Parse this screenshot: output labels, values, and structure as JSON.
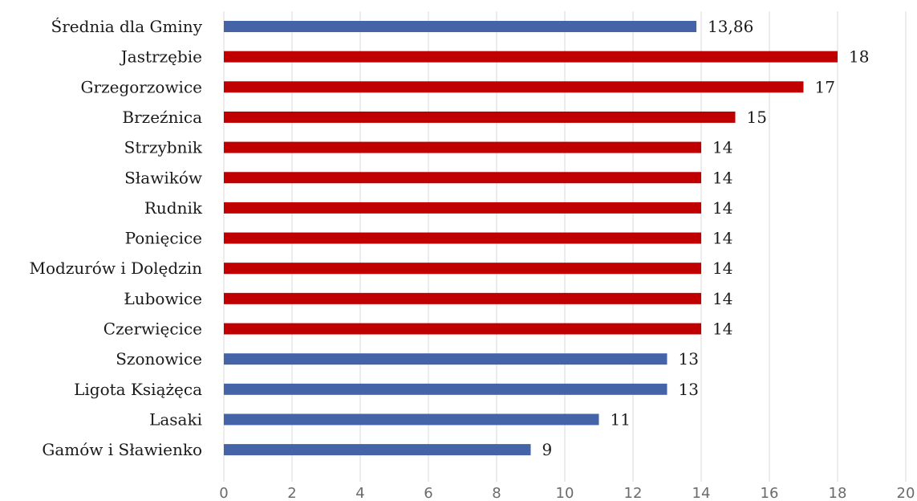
{
  "chart_data": {
    "type": "bar",
    "orientation": "horizontal",
    "title": "",
    "xlabel": "",
    "ylabel": "",
    "xlim": [
      0,
      20
    ],
    "x_ticks": [
      0,
      2,
      4,
      6,
      8,
      10,
      12,
      14,
      16,
      18,
      20
    ],
    "grid": "vertical",
    "legend": "none",
    "colors": {
      "blue": "#4564a8",
      "red": "#c00000"
    },
    "bars": [
      {
        "category": "Średnia dla Gminy",
        "value": 13.86,
        "label": "13,86",
        "color": "blue"
      },
      {
        "category": "Jastrzębie",
        "value": 18,
        "label": "18",
        "color": "red"
      },
      {
        "category": "Grzegorzowice",
        "value": 17,
        "label": "17",
        "color": "red"
      },
      {
        "category": "Brzeźnica",
        "value": 15,
        "label": "15",
        "color": "red"
      },
      {
        "category": "Strzybnik",
        "value": 14,
        "label": "14",
        "color": "red"
      },
      {
        "category": "Sławików",
        "value": 14,
        "label": "14",
        "color": "red"
      },
      {
        "category": "Rudnik",
        "value": 14,
        "label": "14",
        "color": "red"
      },
      {
        "category": "Ponięcice",
        "value": 14,
        "label": "14",
        "color": "red"
      },
      {
        "category": "Modzurów i Dolędzin",
        "value": 14,
        "label": "14",
        "color": "red"
      },
      {
        "category": "Łubowice",
        "value": 14,
        "label": "14",
        "color": "red"
      },
      {
        "category": "Czerwięcice",
        "value": 14,
        "label": "14",
        "color": "red"
      },
      {
        "category": "Szonowice",
        "value": 13,
        "label": "13",
        "color": "blue"
      },
      {
        "category": "Ligota Książęca",
        "value": 13,
        "label": "13",
        "color": "blue"
      },
      {
        "category": "Lasaki",
        "value": 11,
        "label": "11",
        "color": "blue"
      },
      {
        "category": "Gamów i Sławienko",
        "value": 9,
        "label": "9",
        "color": "blue"
      }
    ]
  }
}
